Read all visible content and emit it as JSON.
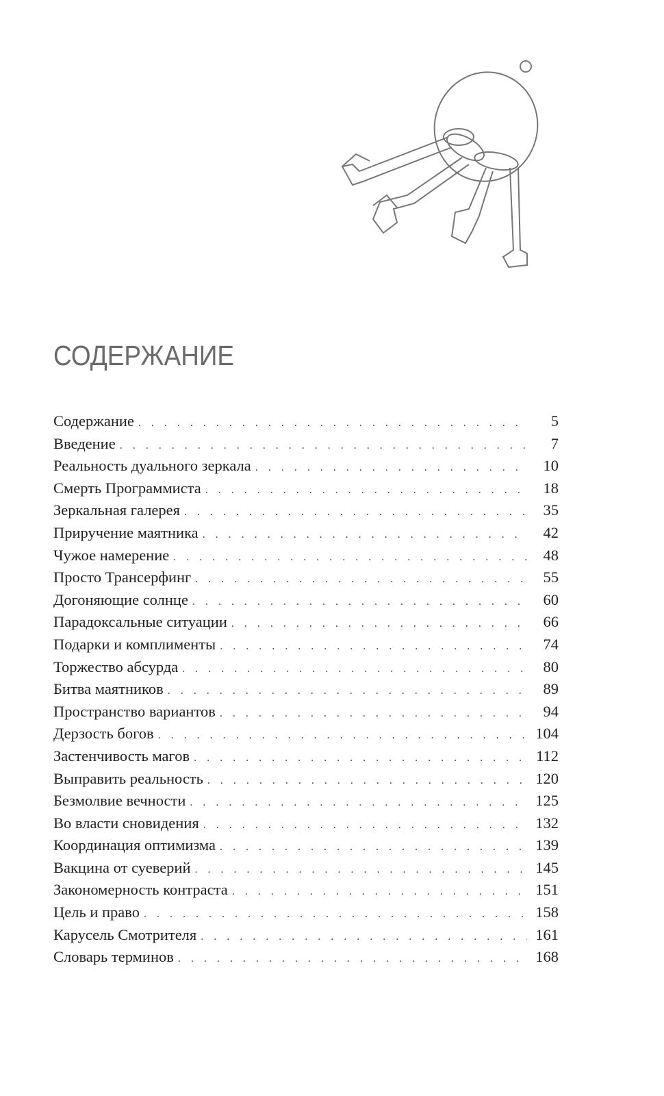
{
  "illustration": {
    "icon": "keys-on-ring-icon"
  },
  "title": "СОДЕРЖАНИЕ",
  "toc": [
    {
      "label": "Содержание",
      "page": "5"
    },
    {
      "label": "Введение",
      "page": "7"
    },
    {
      "label": "Реальность дуального зеркала",
      "page": "10"
    },
    {
      "label": "Смерть Программиста",
      "page": "18"
    },
    {
      "label": "Зеркальная галерея",
      "page": "35"
    },
    {
      "label": "Приручение маятника",
      "page": "42"
    },
    {
      "label": "Чужое намерение",
      "page": "48"
    },
    {
      "label": "Просто Трансерфинг",
      "page": "55"
    },
    {
      "label": "Догоняющие солнце",
      "page": "60"
    },
    {
      "label": "Парадоксальные ситуации",
      "page": "66"
    },
    {
      "label": "Подарки и комплименты",
      "page": "74"
    },
    {
      "label": "Торжество абсурда",
      "page": "80"
    },
    {
      "label": "Битва маятников",
      "page": "89"
    },
    {
      "label": "Пространство вариантов",
      "page": "94"
    },
    {
      "label": "Дерзость богов",
      "page": "104"
    },
    {
      "label": "Застенчивость магов",
      "page": "112"
    },
    {
      "label": "Выправить реальность",
      "page": "120"
    },
    {
      "label": "Безмолвие вечности",
      "page": "125"
    },
    {
      "label": "Во власти сновидения",
      "page": "132"
    },
    {
      "label": "Координация оптимизма",
      "page": "139"
    },
    {
      "label": "Вакцина от суеверий",
      "page": "145"
    },
    {
      "label": "Закономерность контраста",
      "page": "151"
    },
    {
      "label": "Цель и право",
      "page": "158"
    },
    {
      "label": "Карусель Смотрителя",
      "page": "161"
    },
    {
      "label": "Словарь терминов",
      "page": "168"
    }
  ]
}
